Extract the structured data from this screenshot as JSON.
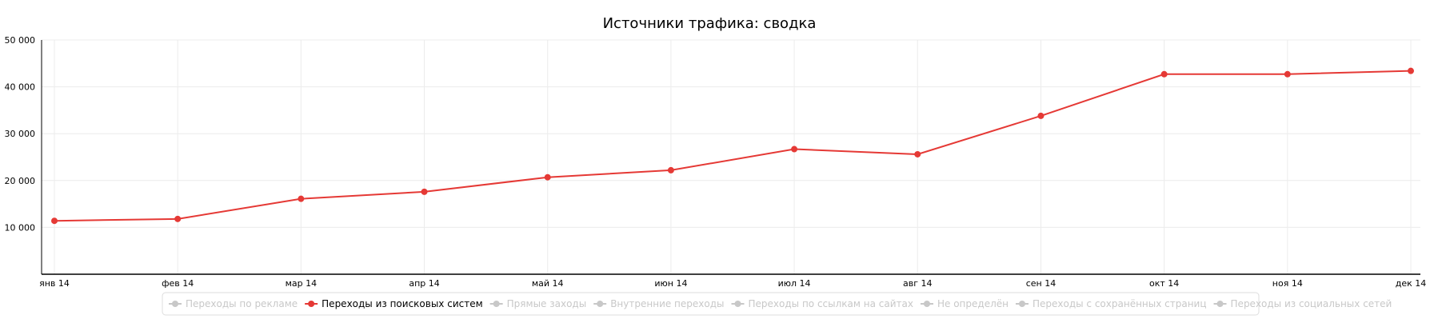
{
  "chart_data": {
    "type": "line",
    "title": "Источники трафика: сводка",
    "xlabel": "",
    "ylabel": "",
    "categories": [
      "янв 14",
      "фев 14",
      "мар 14",
      "апр 14",
      "май 14",
      "июн 14",
      "июл 14",
      "авг 14",
      "сен 14",
      "окт 14",
      "ноя 14",
      "дек 14"
    ],
    "y_ticks": [
      "10 000",
      "20 000",
      "30 000",
      "40 000",
      "50 000"
    ],
    "ylim": [
      0,
      50000
    ],
    "grid": true,
    "legend_position": "bottom",
    "series": [
      {
        "name": "Переходы из поисковых систем",
        "color": "#e53935",
        "visible": true,
        "values": [
          11400,
          11800,
          16100,
          17600,
          20700,
          22200,
          26700,
          25600,
          33800,
          42700,
          42700,
          43400
        ]
      }
    ],
    "legend": [
      {
        "label": "Переходы по рекламе",
        "active": false
      },
      {
        "label": "Переходы из поисковых систем",
        "active": true
      },
      {
        "label": "Прямые заходы",
        "active": false
      },
      {
        "label": "Внутренние переходы",
        "active": false
      },
      {
        "label": "Переходы по ссылкам на сайтах",
        "active": false
      },
      {
        "label": "Не определён",
        "active": false
      },
      {
        "label": "Переходы с сохранённых страниц",
        "active": false
      },
      {
        "label": "Переходы из социальных сетей",
        "active": false
      }
    ],
    "colors": {
      "active_series": "#e53935",
      "inactive_legend": "#c8c8c8",
      "grid": "#ececec",
      "axis": "#000000"
    }
  }
}
